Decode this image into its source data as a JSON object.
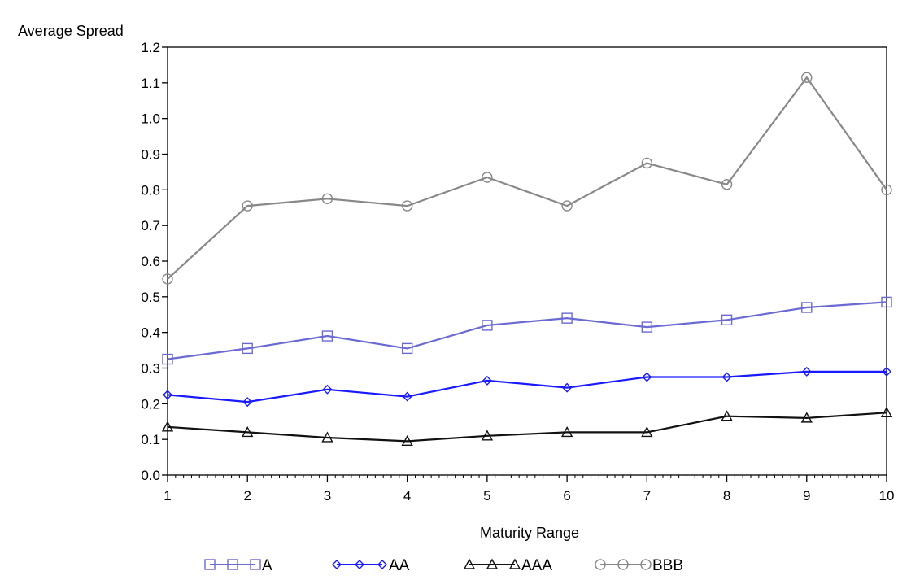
{
  "chart_data": {
    "type": "line",
    "ylabel": "Average Spread",
    "xlabel": "Maturity Range",
    "x": [
      1,
      2,
      3,
      4,
      5,
      6,
      7,
      8,
      9,
      10
    ],
    "xticks": [
      "1",
      "2",
      "3",
      "4",
      "5",
      "6",
      "7",
      "8",
      "9",
      "10"
    ],
    "yticks": [
      "0.0",
      "0.1",
      "0.2",
      "0.3",
      "0.4",
      "0.5",
      "0.6",
      "0.7",
      "0.8",
      "0.9",
      "1.0",
      "1.1",
      "1.2"
    ],
    "ylim": [
      0,
      1.2
    ],
    "xlim": [
      1,
      10
    ],
    "grid": false,
    "legend_position": "bottom",
    "series": [
      {
        "name": "A",
        "marker": "square",
        "color": "#6a6ad2",
        "values": [
          0.325,
          0.355,
          0.39,
          0.355,
          0.42,
          0.44,
          0.415,
          0.435,
          0.47,
          0.485
        ]
      },
      {
        "name": "AA",
        "marker": "diamond",
        "color": "#1a1aff",
        "values": [
          0.225,
          0.205,
          0.24,
          0.22,
          0.265,
          0.245,
          0.275,
          0.275,
          0.29,
          0.29
        ]
      },
      {
        "name": "AAA",
        "marker": "triangle",
        "color": "#111111",
        "values": [
          0.135,
          0.12,
          0.105,
          0.095,
          0.11,
          0.12,
          0.12,
          0.165,
          0.16,
          0.175
        ]
      },
      {
        "name": "BBB",
        "marker": "circle",
        "color": "#888888",
        "values": [
          0.55,
          0.755,
          0.775,
          0.755,
          0.835,
          0.755,
          0.875,
          0.815,
          1.115,
          0.8
        ]
      }
    ]
  }
}
